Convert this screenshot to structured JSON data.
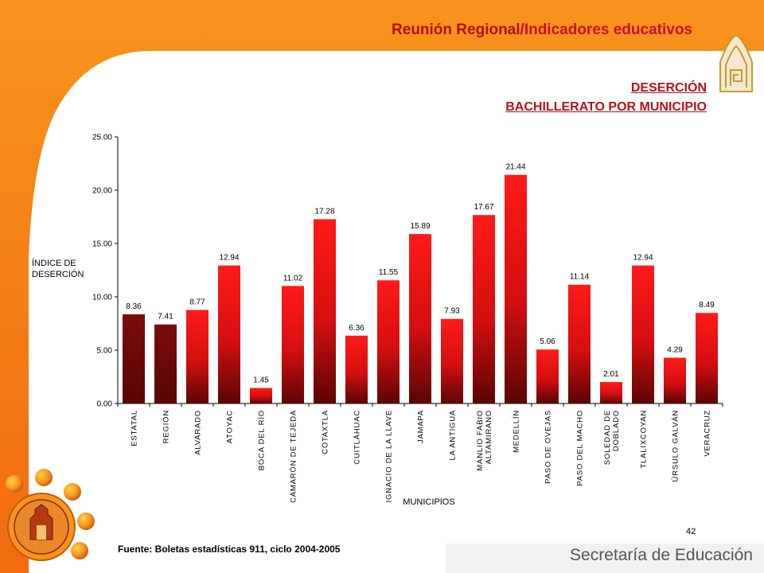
{
  "header": {
    "title_part1": "Reunión Regional",
    "title_sep": "/",
    "title_part2": "Indicadores educativos"
  },
  "subtitle": {
    "line1": "DESERCIÓN",
    "line2": "BACHILLERATO POR MUNICIPIO"
  },
  "footer": {
    "source": "Fuente:  Boletas estadísticas  911, ciclo 2004-2005",
    "page_number": "42",
    "organization": "Secretaría de Educación"
  },
  "colors": {
    "header_bar": "#f7941d",
    "dark_bar_top": "#7a0c0c",
    "dark_bar_bottom": "#5a0505",
    "red_bar_top": "#ff1a1a",
    "red_bar_bottom": "#5a0505",
    "title_red": "#b0100f"
  },
  "chart_data": {
    "type": "bar",
    "ylabel": "ÍNDICE DE\nDESERCIÓN",
    "xlabel": "MUNICIPIOS",
    "ylim": [
      0,
      25
    ],
    "yticks": [
      "0.00",
      "5.00",
      "10.00",
      "15.00",
      "20.00",
      "25.00"
    ],
    "grid": false,
    "categories": [
      "ESTATAL",
      "REGIÓN",
      "ALVARADO",
      "ATOYAC",
      "BOCA DEL RÍO",
      "CAMARÓN DE TEJEDA",
      "COTAXTLA",
      "CUITLÁHUAC",
      "IGNACIO DE LA LLAVE",
      "JAMAPA",
      "LA ANTIGUA",
      "MANLIO FABIO\nALTAMIRANO",
      "MEDELLÍN",
      "PASO DE OVEJAS",
      "PASO DEL MACHO",
      "SOLEDAD DE\nDOBLADO",
      "TLALIXCOYAN",
      "ÚRSULO GALVÁN",
      "VERACRUZ"
    ],
    "values": [
      8.36,
      7.41,
      8.77,
      12.94,
      1.45,
      11.02,
      17.28,
      6.36,
      11.55,
      15.89,
      7.93,
      17.67,
      21.44,
      5.06,
      11.14,
      2.01,
      12.94,
      4.29,
      8.49
    ],
    "value_labels": [
      "8.36",
      "7.41",
      "8.77",
      "12.94",
      "1.45",
      "11.02",
      "17.28",
      "6.36",
      "11.55",
      "15.89",
      "7.93",
      "17.67",
      "21.44",
      "5.06",
      "11.14",
      "2.01",
      "12.94",
      "4.29",
      "8.49"
    ],
    "bar_style": [
      "dark",
      "dark",
      "red",
      "red",
      "red",
      "red",
      "red",
      "red",
      "red",
      "red",
      "red",
      "red",
      "red",
      "red",
      "red",
      "red",
      "red",
      "red",
      "red"
    ]
  }
}
